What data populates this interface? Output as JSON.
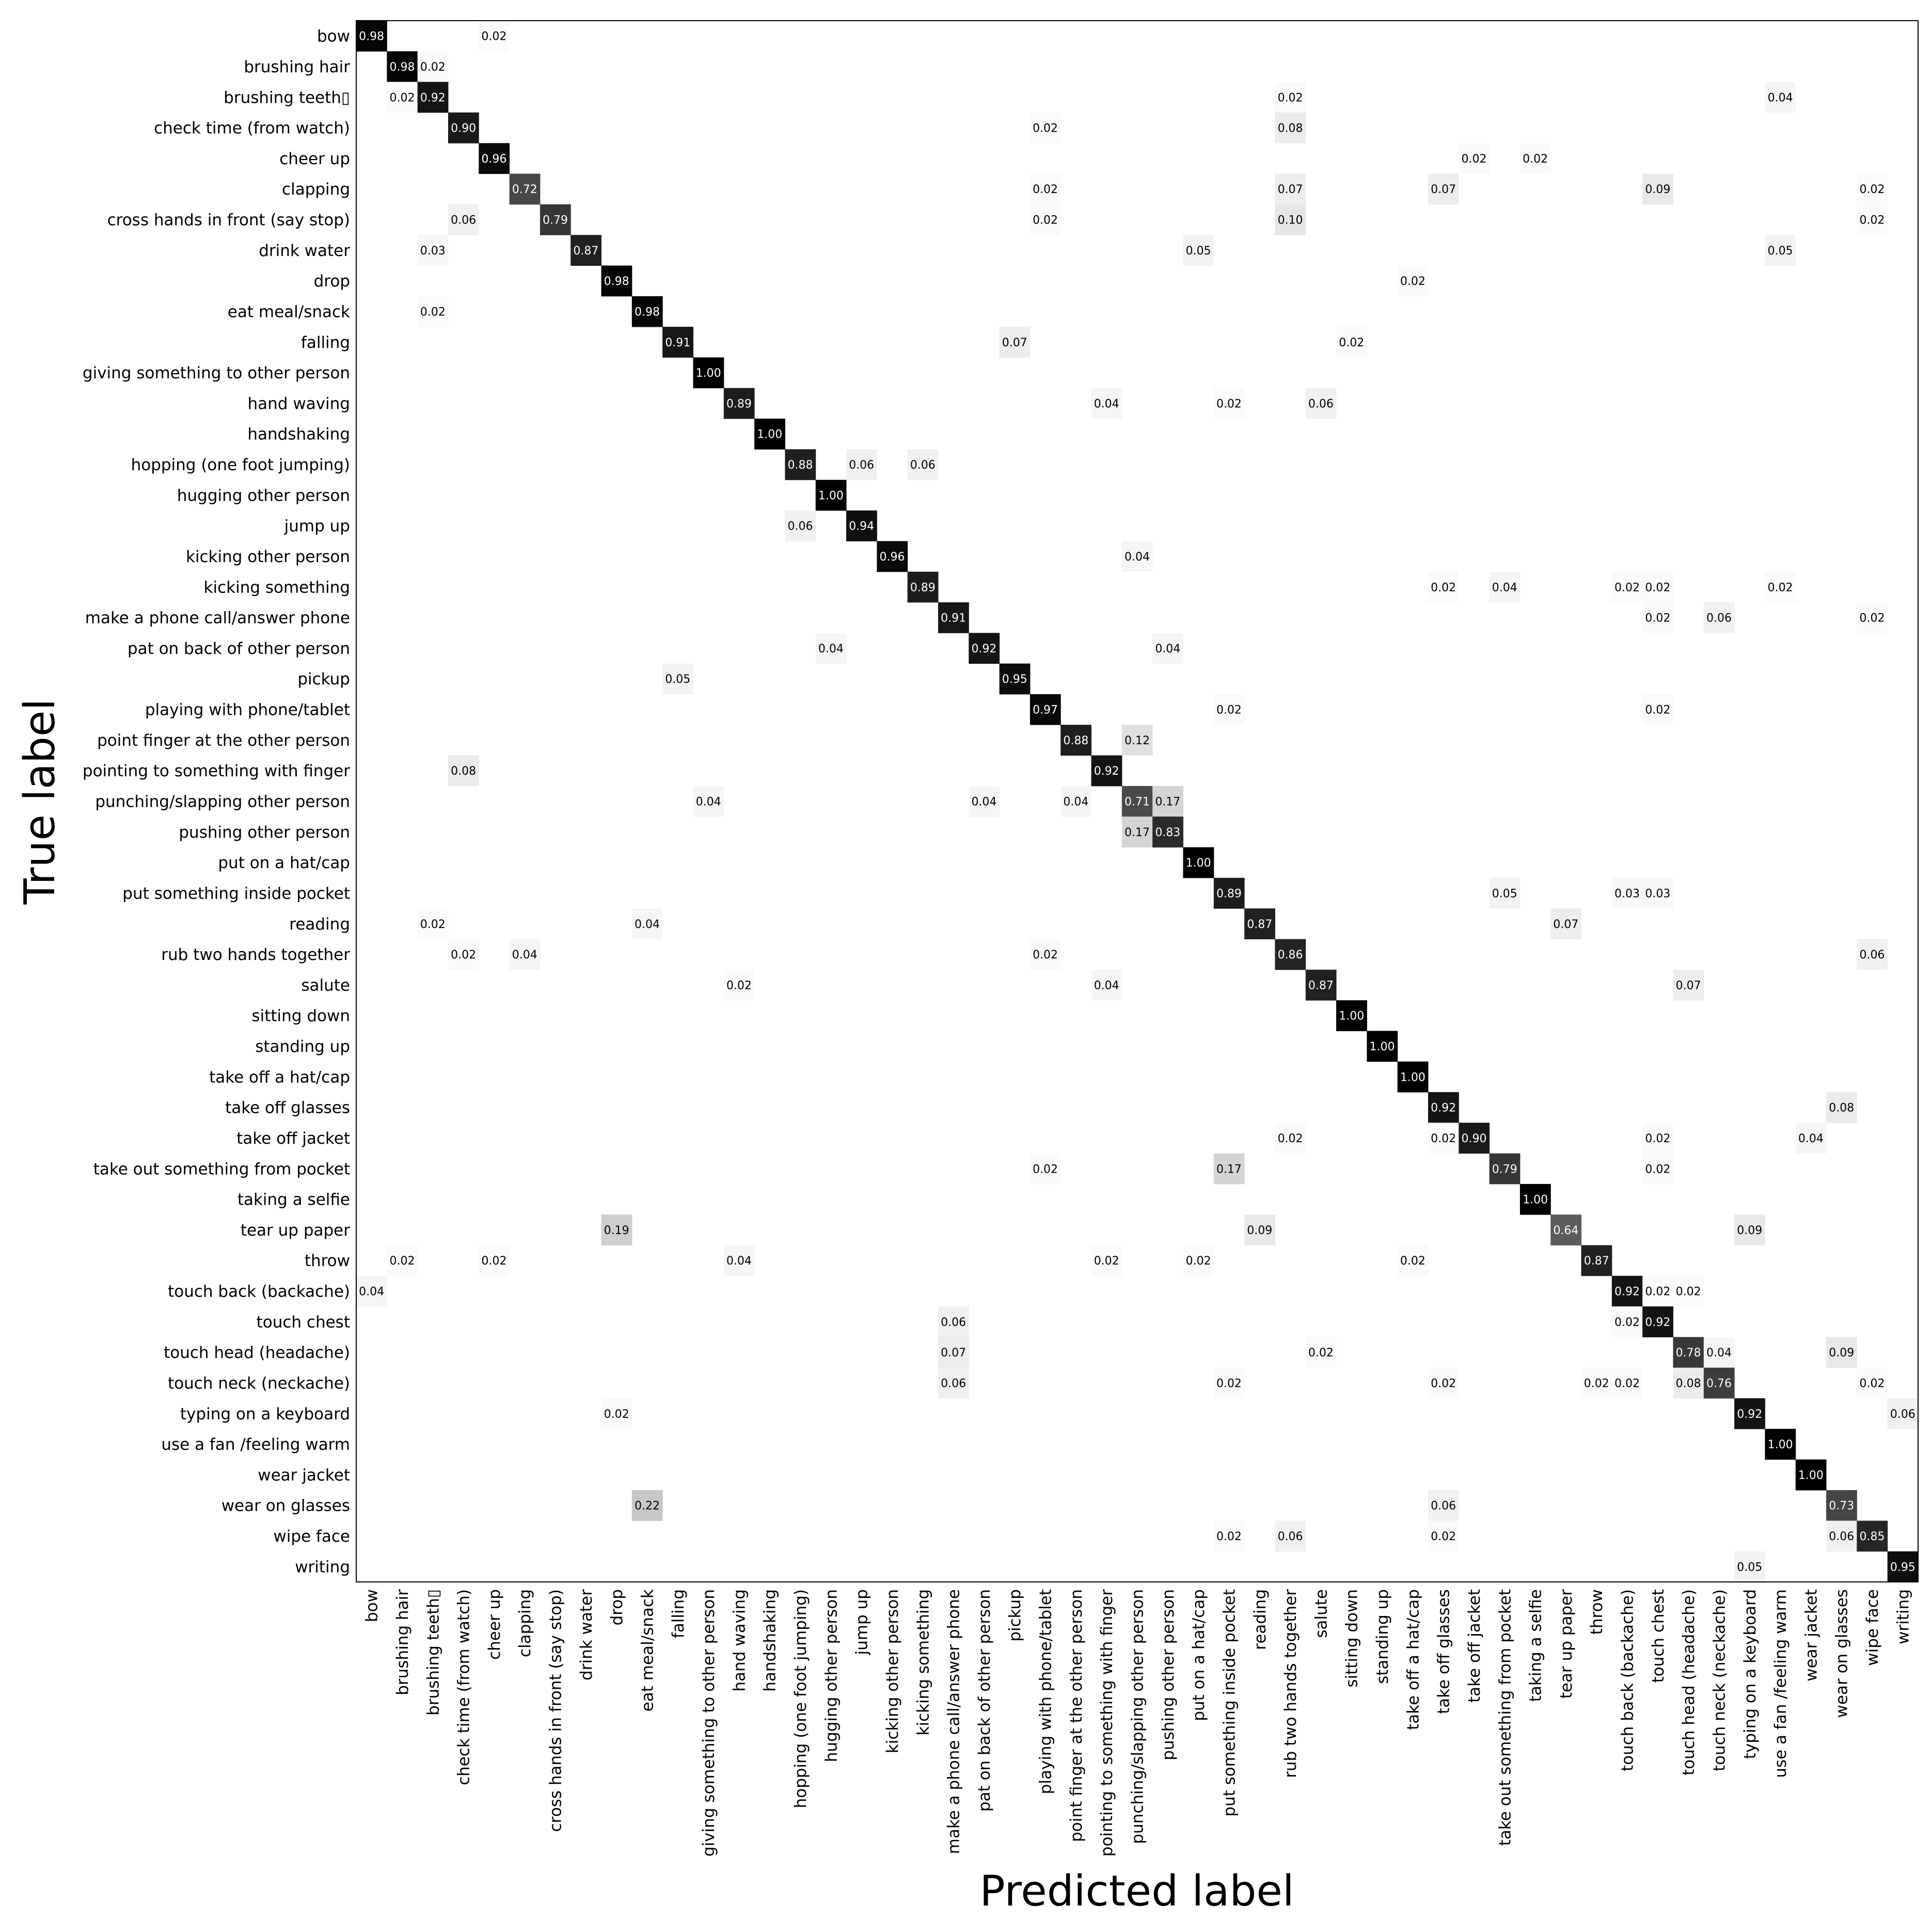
{
  "chart_data": {
    "type": "heatmap",
    "title": "",
    "xlabel": "Predicted label",
    "ylabel": "True label",
    "color_scale": {
      "low": "#ffffff",
      "high": "#000000",
      "text_dark": "#000000",
      "text_light": "#ffffff"
    },
    "range": [
      0,
      1
    ],
    "labels": [
      "bow",
      "brushing hair",
      "brushing teeth▯",
      "check time (from watch)",
      "cheer up",
      "clapping",
      "cross hands in front (say stop)",
      "drink water",
      "drop",
      "eat meal/snack",
      "falling",
      "giving something to other person",
      "hand waving",
      "handshaking",
      "hopping (one foot jumping)",
      "hugging other person",
      "jump up",
      "kicking other person",
      "kicking something",
      "make a phone call/answer phone",
      "pat on back of other person",
      "pickup",
      "playing with phone/tablet",
      "point finger at the other person",
      "pointing to something with finger",
      "punching/slapping other person",
      "pushing other person",
      "put on a hat/cap",
      "put something inside pocket",
      "reading",
      "rub two hands together",
      "salute",
      "sitting down",
      "standing up",
      "take off a hat/cap",
      "take off glasses",
      "take off jacket",
      "take out something from pocket",
      "taking a selfie",
      "tear up paper",
      "throw",
      "touch back (backache)",
      "touch chest",
      "touch head (headache)",
      "touch neck (neckache)",
      "typing on a keyboard",
      "use a fan /feeling warm",
      "wear jacket",
      "wear on glasses",
      "wipe face",
      "writing"
    ],
    "cells": [
      [
        0,
        0,
        0.98
      ],
      [
        0,
        4,
        0.02
      ],
      [
        1,
        1,
        0.98
      ],
      [
        1,
        2,
        0.02
      ],
      [
        2,
        1,
        0.02
      ],
      [
        2,
        2,
        0.92
      ],
      [
        2,
        30,
        0.02
      ],
      [
        2,
        46,
        0.04
      ],
      [
        3,
        3,
        0.9
      ],
      [
        3,
        22,
        0.02
      ],
      [
        3,
        30,
        0.08
      ],
      [
        4,
        4,
        0.96
      ],
      [
        4,
        36,
        0.02
      ],
      [
        4,
        38,
        0.02
      ],
      [
        5,
        5,
        0.72
      ],
      [
        5,
        22,
        0.02
      ],
      [
        5,
        30,
        0.07
      ],
      [
        5,
        35,
        0.07
      ],
      [
        5,
        42,
        0.09
      ],
      [
        5,
        49,
        0.02
      ],
      [
        6,
        3,
        0.06
      ],
      [
        6,
        6,
        0.79
      ],
      [
        6,
        22,
        0.02
      ],
      [
        6,
        30,
        0.1
      ],
      [
        6,
        49,
        0.02
      ],
      [
        7,
        2,
        0.03
      ],
      [
        7,
        7,
        0.87
      ],
      [
        7,
        27,
        0.05
      ],
      [
        7,
        46,
        0.05
      ],
      [
        8,
        8,
        0.98
      ],
      [
        8,
        34,
        0.02
      ],
      [
        9,
        2,
        0.02
      ],
      [
        9,
        9,
        0.98
      ],
      [
        10,
        10,
        0.91
      ],
      [
        10,
        21,
        0.07
      ],
      [
        10,
        32,
        0.02
      ],
      [
        11,
        11,
        1.0
      ],
      [
        12,
        12,
        0.89
      ],
      [
        12,
        24,
        0.04
      ],
      [
        12,
        28,
        0.02
      ],
      [
        12,
        31,
        0.06
      ],
      [
        13,
        13,
        1.0
      ],
      [
        14,
        14,
        0.88
      ],
      [
        14,
        16,
        0.06
      ],
      [
        14,
        18,
        0.06
      ],
      [
        15,
        15,
        1.0
      ],
      [
        16,
        14,
        0.06
      ],
      [
        16,
        16,
        0.94
      ],
      [
        17,
        17,
        0.96
      ],
      [
        17,
        25,
        0.04
      ],
      [
        18,
        18,
        0.89
      ],
      [
        18,
        35,
        0.02
      ],
      [
        18,
        37,
        0.04
      ],
      [
        18,
        41,
        0.02
      ],
      [
        18,
        42,
        0.02
      ],
      [
        18,
        46,
        0.02
      ],
      [
        19,
        19,
        0.91
      ],
      [
        19,
        42,
        0.02
      ],
      [
        19,
        44,
        0.06
      ],
      [
        19,
        49,
        0.02
      ],
      [
        20,
        15,
        0.04
      ],
      [
        20,
        20,
        0.92
      ],
      [
        20,
        26,
        0.04
      ],
      [
        21,
        10,
        0.05
      ],
      [
        21,
        21,
        0.95
      ],
      [
        22,
        22,
        0.97
      ],
      [
        22,
        28,
        0.02
      ],
      [
        22,
        42,
        0.02
      ],
      [
        23,
        23,
        0.88
      ],
      [
        23,
        25,
        0.12
      ],
      [
        24,
        3,
        0.08
      ],
      [
        24,
        24,
        0.92
      ],
      [
        25,
        11,
        0.04
      ],
      [
        25,
        20,
        0.04
      ],
      [
        25,
        23,
        0.04
      ],
      [
        25,
        25,
        0.71
      ],
      [
        25,
        26,
        0.17
      ],
      [
        26,
        25,
        0.17
      ],
      [
        26,
        26,
        0.83
      ],
      [
        27,
        27,
        1.0
      ],
      [
        28,
        28,
        0.89
      ],
      [
        28,
        37,
        0.05
      ],
      [
        28,
        41,
        0.03
      ],
      [
        28,
        42,
        0.03
      ],
      [
        29,
        2,
        0.02
      ],
      [
        29,
        9,
        0.04
      ],
      [
        29,
        29,
        0.87
      ],
      [
        29,
        39,
        0.07
      ],
      [
        30,
        3,
        0.02
      ],
      [
        30,
        5,
        0.04
      ],
      [
        30,
        22,
        0.02
      ],
      [
        30,
        30,
        0.86
      ],
      [
        30,
        49,
        0.06
      ],
      [
        31,
        12,
        0.02
      ],
      [
        31,
        24,
        0.04
      ],
      [
        31,
        31,
        0.87
      ],
      [
        31,
        43,
        0.07
      ],
      [
        32,
        32,
        1.0
      ],
      [
        33,
        33,
        1.0
      ],
      [
        34,
        34,
        1.0
      ],
      [
        35,
        35,
        0.92
      ],
      [
        35,
        48,
        0.08
      ],
      [
        36,
        30,
        0.02
      ],
      [
        36,
        35,
        0.02
      ],
      [
        36,
        36,
        0.9
      ],
      [
        36,
        42,
        0.02
      ],
      [
        36,
        47,
        0.04
      ],
      [
        37,
        22,
        0.02
      ],
      [
        37,
        28,
        0.17
      ],
      [
        37,
        37,
        0.79
      ],
      [
        37,
        42,
        0.02
      ],
      [
        38,
        38,
        1.0
      ],
      [
        39,
        8,
        0.19
      ],
      [
        39,
        29,
        0.09
      ],
      [
        39,
        39,
        0.64
      ],
      [
        39,
        45,
        0.09
      ],
      [
        40,
        1,
        0.02
      ],
      [
        40,
        4,
        0.02
      ],
      [
        40,
        12,
        0.04
      ],
      [
        40,
        24,
        0.02
      ],
      [
        40,
        27,
        0.02
      ],
      [
        40,
        34,
        0.02
      ],
      [
        40,
        40,
        0.87
      ],
      [
        41,
        0,
        0.04
      ],
      [
        41,
        41,
        0.92
      ],
      [
        41,
        42,
        0.02
      ],
      [
        41,
        43,
        0.02
      ],
      [
        42,
        19,
        0.06
      ],
      [
        42,
        41,
        0.02
      ],
      [
        42,
        42,
        0.92
      ],
      [
        43,
        19,
        0.07
      ],
      [
        43,
        31,
        0.02
      ],
      [
        43,
        43,
        0.78
      ],
      [
        43,
        44,
        0.04
      ],
      [
        43,
        48,
        0.09
      ],
      [
        44,
        19,
        0.06
      ],
      [
        44,
        28,
        0.02
      ],
      [
        44,
        35,
        0.02
      ],
      [
        44,
        40,
        0.02
      ],
      [
        44,
        41,
        0.02
      ],
      [
        44,
        43,
        0.08
      ],
      [
        44,
        44,
        0.76
      ],
      [
        44,
        49,
        0.02
      ],
      [
        45,
        8,
        0.02
      ],
      [
        45,
        45,
        0.92
      ],
      [
        45,
        50,
        0.06
      ],
      [
        46,
        46,
        1.0
      ],
      [
        47,
        47,
        1.0
      ],
      [
        48,
        9,
        0.22
      ],
      [
        48,
        35,
        0.06
      ],
      [
        48,
        48,
        0.73
      ],
      [
        49,
        28,
        0.02
      ],
      [
        49,
        30,
        0.06
      ],
      [
        49,
        35,
        0.02
      ],
      [
        49,
        48,
        0.06
      ],
      [
        49,
        49,
        0.85
      ],
      [
        50,
        45,
        0.05
      ],
      [
        50,
        50,
        0.95
      ]
    ]
  }
}
